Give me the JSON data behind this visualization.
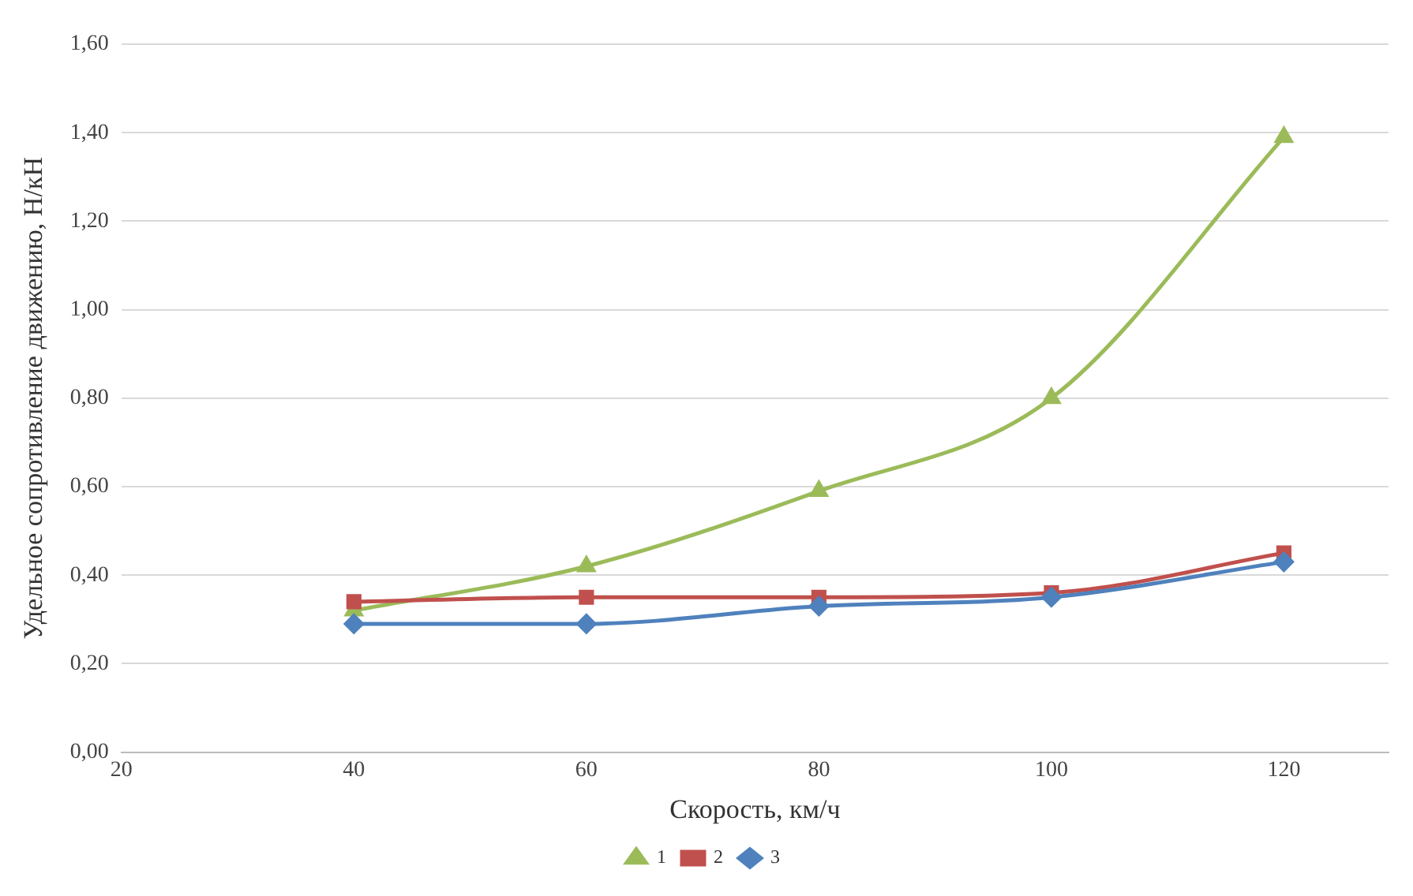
{
  "chart_data": {
    "type": "line",
    "xlabel": "Скорость, км/ч",
    "ylabel": "Удельное сопротивление движению, Н/кН",
    "x": [
      40,
      60,
      80,
      100,
      120
    ],
    "series": [
      {
        "name": "1",
        "color": "#9bbb59",
        "marker": "triangle",
        "values": [
          0.32,
          0.42,
          0.59,
          0.8,
          1.39
        ]
      },
      {
        "name": "2",
        "color": "#c0504d",
        "marker": "square",
        "values": [
          0.34,
          0.35,
          0.35,
          0.36,
          0.45
        ]
      },
      {
        "name": "3",
        "color": "#4f81bd",
        "marker": "diamond",
        "values": [
          0.29,
          0.29,
          0.33,
          0.35,
          0.43
        ]
      }
    ],
    "xlim": [
      20,
      129
    ],
    "xticks": [
      20,
      40,
      60,
      80,
      100,
      120
    ],
    "ylim": [
      0,
      1.6
    ],
    "yticks": [
      {
        "value": 0,
        "label": "0,00"
      },
      {
        "value": 0.2,
        "label": "0,20"
      },
      {
        "value": 0.4,
        "label": "0,40"
      },
      {
        "value": 0.6,
        "label": "0,60"
      },
      {
        "value": 0.8,
        "label": "0,80"
      },
      {
        "value": 1.0,
        "label": "1,00"
      },
      {
        "value": 1.2,
        "label": "1,20"
      },
      {
        "value": 1.4,
        "label": "1,40"
      },
      {
        "value": 1.6,
        "label": "1,60"
      }
    ],
    "grid": "y",
    "legend": "bottom",
    "line_style": "solid"
  }
}
